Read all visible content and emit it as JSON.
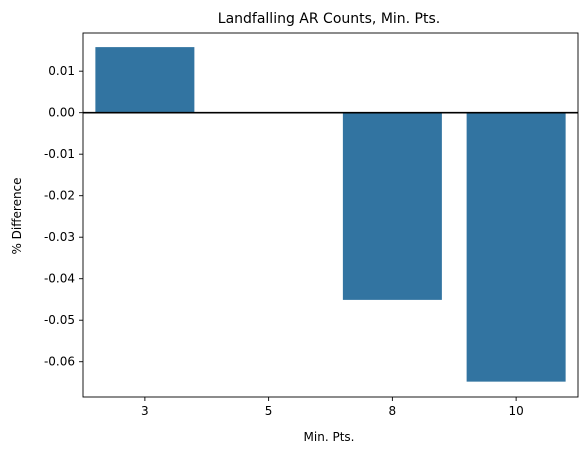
{
  "chart_data": {
    "type": "bar",
    "title": "Landfalling AR Counts, Min. Pts.",
    "xlabel": "Min. Pts.",
    "ylabel": "% Difference",
    "categories": [
      "3",
      "5",
      "8",
      "10"
    ],
    "values": [
      0.0158,
      0.0,
      -0.0451,
      -0.0648
    ],
    "ylim": [
      -0.0685,
      0.0192
    ],
    "yticks": [
      "0.01",
      "0.00",
      "-0.01",
      "-0.02",
      "-0.03",
      "-0.04",
      "-0.05",
      "-0.06"
    ],
    "ytick_values": [
      0.01,
      0.0,
      -0.01,
      -0.02,
      -0.03,
      -0.04,
      -0.05,
      -0.06
    ],
    "zero_line": true,
    "grid": false,
    "bar_color": "#3274a1"
  }
}
